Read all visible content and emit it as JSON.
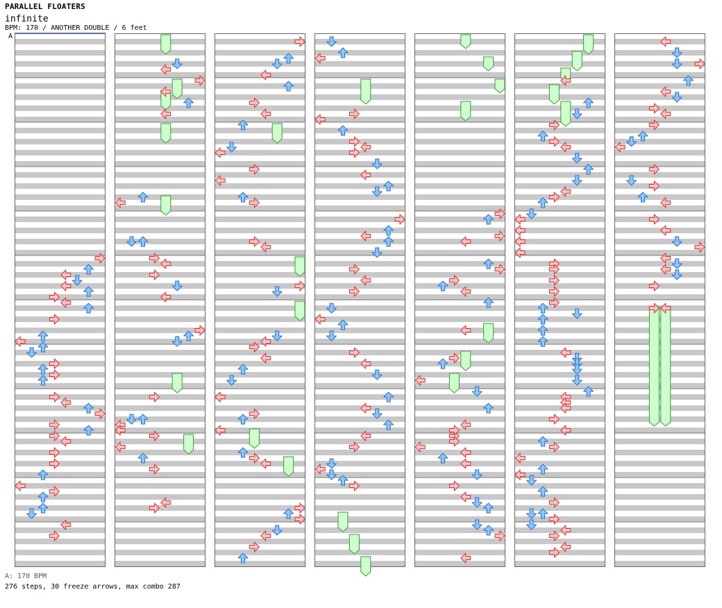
{
  "header": {
    "title": "PARALLEL FLOATERS",
    "subtitle": "infinite",
    "chart_info": "BPM: 170 / ANOTHER DOUBLE / 6 feet",
    "bpm_marker": "A"
  },
  "footer": {
    "bpm_legend": "A: 170 BPM",
    "stats": "276 steps, 30 freeze arrows, max combo 287"
  },
  "colors": {
    "stripe": "#c8c8c8",
    "column_border": "#666666",
    "blue_fill": "#88c8ff",
    "blue_stroke": "#2a6fd6",
    "red_fill": "#ffc2c2",
    "red_stroke": "#e03030",
    "freeze_fill": "#ccffcc",
    "freeze_stroke": "#3a9a3a",
    "bpm_line": "#3355cc"
  },
  "chart_data": {
    "type": "step-chart",
    "mode": "double",
    "bpm": 170,
    "columns": 7,
    "measures_per_column": 12,
    "lanes": [
      "L1",
      "D1",
      "U1",
      "R1",
      "L2",
      "D2",
      "U2",
      "R2"
    ],
    "lane_side_colors": [
      "red",
      "blue",
      "blue",
      "red",
      "red",
      "blue",
      "blue",
      "red"
    ],
    "freezes": [
      {
        "col": 1,
        "lane": 4,
        "start": 0,
        "end": 2
      },
      {
        "col": 1,
        "lane": 5,
        "start": 8,
        "end": 10
      },
      {
        "col": 1,
        "lane": 4,
        "start": 10,
        "end": 12
      },
      {
        "col": 1,
        "lane": 4,
        "start": 16,
        "end": 18
      },
      {
        "col": 1,
        "lane": 4,
        "start": 29,
        "end": 31
      },
      {
        "col": 1,
        "lane": 5,
        "start": 61,
        "end": 63
      },
      {
        "col": 1,
        "lane": 6,
        "start": 72,
        "end": 74
      },
      {
        "col": 2,
        "lane": 5,
        "start": 16,
        "end": 18
      },
      {
        "col": 2,
        "lane": 7,
        "start": 40,
        "end": 42
      },
      {
        "col": 2,
        "lane": 7,
        "start": 48,
        "end": 50
      },
      {
        "col": 2,
        "lane": 3,
        "start": 71,
        "end": 73
      },
      {
        "col": 2,
        "lane": 6,
        "start": 76,
        "end": 78
      },
      {
        "col": 3,
        "lane": 4,
        "start": 8,
        "end": 11
      },
      {
        "col": 3,
        "lane": 2,
        "start": 86,
        "end": 88
      },
      {
        "col": 3,
        "lane": 3,
        "start": 90,
        "end": 92
      },
      {
        "col": 3,
        "lane": 4,
        "start": 94,
        "end": 96
      },
      {
        "col": 4,
        "lane": 4,
        "start": 0,
        "end": 1
      },
      {
        "col": 4,
        "lane": 6,
        "start": 4,
        "end": 5
      },
      {
        "col": 4,
        "lane": 7,
        "start": 8,
        "end": 9
      },
      {
        "col": 4,
        "lane": 4,
        "start": 12,
        "end": 14
      },
      {
        "col": 4,
        "lane": 6,
        "start": 52,
        "end": 54
      },
      {
        "col": 4,
        "lane": 4,
        "start": 57,
        "end": 59
      },
      {
        "col": 4,
        "lane": 3,
        "start": 61,
        "end": 63
      },
      {
        "col": 5,
        "lane": 6,
        "start": 0,
        "end": 2
      },
      {
        "col": 5,
        "lane": 5,
        "start": 3,
        "end": 5
      },
      {
        "col": 5,
        "lane": 4,
        "start": 6,
        "end": 7
      },
      {
        "col": 5,
        "lane": 3,
        "start": 9,
        "end": 11
      },
      {
        "col": 5,
        "lane": 4,
        "start": 12,
        "end": 15
      },
      {
        "col": 6,
        "lane": 3,
        "start": 49,
        "end": 69
      },
      {
        "col": 6,
        "lane": 4,
        "start": 49,
        "end": 69
      }
    ],
    "arrows": [
      [
        0,
        7,
        40
      ],
      [
        0,
        6,
        42
      ],
      [
        0,
        4,
        43
      ],
      [
        0,
        5,
        44
      ],
      [
        0,
        4,
        45
      ],
      [
        0,
        6,
        46
      ],
      [
        0,
        3,
        47
      ],
      [
        0,
        4,
        48
      ],
      [
        0,
        6,
        49
      ],
      [
        0,
        3,
        51
      ],
      [
        0,
        2,
        54
      ],
      [
        0,
        0,
        55
      ],
      [
        0,
        2,
        56
      ],
      [
        0,
        1,
        57
      ],
      [
        0,
        3,
        59
      ],
      [
        0,
        2,
        60
      ],
      [
        0,
        3,
        61
      ],
      [
        0,
        2,
        62
      ],
      [
        0,
        3,
        65
      ],
      [
        0,
        4,
        66
      ],
      [
        0,
        6,
        67
      ],
      [
        0,
        7,
        68
      ],
      [
        0,
        3,
        70
      ],
      [
        0,
        6,
        71
      ],
      [
        0,
        3,
        72
      ],
      [
        0,
        4,
        73
      ],
      [
        0,
        3,
        75
      ],
      [
        0,
        3,
        77
      ],
      [
        0,
        2,
        79
      ],
      [
        0,
        0,
        81
      ],
      [
        0,
        3,
        82
      ],
      [
        0,
        2,
        83
      ],
      [
        0,
        2,
        85
      ],
      [
        0,
        1,
        86
      ],
      [
        0,
        4,
        88
      ],
      [
        0,
        3,
        90
      ],
      [
        1,
        5,
        5
      ],
      [
        1,
        4,
        6
      ],
      [
        1,
        7,
        8
      ],
      [
        1,
        4,
        10
      ],
      [
        1,
        6,
        12
      ],
      [
        1,
        4,
        14
      ],
      [
        1,
        0,
        30
      ],
      [
        1,
        2,
        29
      ],
      [
        1,
        1,
        37
      ],
      [
        1,
        2,
        37
      ],
      [
        1,
        3,
        40
      ],
      [
        1,
        4,
        41
      ],
      [
        1,
        3,
        43
      ],
      [
        1,
        5,
        45
      ],
      [
        1,
        4,
        47
      ],
      [
        1,
        7,
        53
      ],
      [
        1,
        6,
        54
      ],
      [
        1,
        5,
        55
      ],
      [
        1,
        3,
        65
      ],
      [
        1,
        1,
        69
      ],
      [
        1,
        0,
        70
      ],
      [
        1,
        2,
        69
      ],
      [
        1,
        0,
        71
      ],
      [
        1,
        3,
        72
      ],
      [
        1,
        0,
        74
      ],
      [
        1,
        2,
        76
      ],
      [
        1,
        3,
        78
      ],
      [
        1,
        4,
        84
      ],
      [
        1,
        3,
        85
      ],
      [
        2,
        7,
        1
      ],
      [
        2,
        6,
        4
      ],
      [
        2,
        5,
        5
      ],
      [
        2,
        4,
        7
      ],
      [
        2,
        6,
        9
      ],
      [
        2,
        3,
        12
      ],
      [
        2,
        4,
        14
      ],
      [
        2,
        2,
        16
      ],
      [
        2,
        1,
        20
      ],
      [
        2,
        0,
        21
      ],
      [
        2,
        3,
        24
      ],
      [
        2,
        0,
        26
      ],
      [
        2,
        2,
        29
      ],
      [
        2,
        3,
        30
      ],
      [
        2,
        3,
        37
      ],
      [
        2,
        4,
        38
      ],
      [
        2,
        5,
        46
      ],
      [
        2,
        7,
        45
      ],
      [
        2,
        5,
        54
      ],
      [
        2,
        4,
        55
      ],
      [
        2,
        3,
        56
      ],
      [
        2,
        4,
        58
      ],
      [
        2,
        2,
        60
      ],
      [
        2,
        1,
        62
      ],
      [
        2,
        0,
        65
      ],
      [
        2,
        2,
        69
      ],
      [
        2,
        3,
        68
      ],
      [
        2,
        0,
        71
      ],
      [
        2,
        2,
        75
      ],
      [
        2,
        3,
        76
      ],
      [
        2,
        4,
        77
      ],
      [
        2,
        6,
        86
      ],
      [
        2,
        7,
        85
      ],
      [
        2,
        7,
        87
      ],
      [
        2,
        5,
        89
      ],
      [
        2,
        4,
        90
      ],
      [
        2,
        3,
        92
      ],
      [
        2,
        2,
        94
      ],
      [
        3,
        1,
        1
      ],
      [
        3,
        2,
        3
      ],
      [
        3,
        0,
        4
      ],
      [
        3,
        3,
        14
      ],
      [
        3,
        0,
        15
      ],
      [
        3,
        2,
        17
      ],
      [
        3,
        3,
        19
      ],
      [
        3,
        4,
        20
      ],
      [
        3,
        3,
        21
      ],
      [
        3,
        5,
        23
      ],
      [
        3,
        4,
        25
      ],
      [
        3,
        6,
        27
      ],
      [
        3,
        5,
        28
      ],
      [
        3,
        7,
        33
      ],
      [
        3,
        6,
        35
      ],
      [
        3,
        4,
        36
      ],
      [
        3,
        6,
        37
      ],
      [
        3,
        5,
        39
      ],
      [
        3,
        3,
        42
      ],
      [
        3,
        4,
        44
      ],
      [
        3,
        3,
        46
      ],
      [
        3,
        1,
        49
      ],
      [
        3,
        0,
        51
      ],
      [
        3,
        2,
        52
      ],
      [
        3,
        1,
        54
      ],
      [
        3,
        3,
        57
      ],
      [
        3,
        4,
        59
      ],
      [
        3,
        5,
        61
      ],
      [
        3,
        6,
        65
      ],
      [
        3,
        4,
        67
      ],
      [
        3,
        5,
        68
      ],
      [
        3,
        6,
        70
      ],
      [
        3,
        4,
        72
      ],
      [
        3,
        3,
        74
      ],
      [
        3,
        1,
        77
      ],
      [
        3,
        0,
        78
      ],
      [
        3,
        1,
        79
      ],
      [
        3,
        2,
        80
      ],
      [
        3,
        3,
        81
      ],
      [
        4,
        7,
        32
      ],
      [
        4,
        6,
        33
      ],
      [
        4,
        7,
        36
      ],
      [
        4,
        4,
        37
      ],
      [
        4,
        6,
        41
      ],
      [
        4,
        7,
        42
      ],
      [
        4,
        3,
        44
      ],
      [
        4,
        2,
        45
      ],
      [
        4,
        4,
        46
      ],
      [
        4,
        6,
        48
      ],
      [
        4,
        4,
        53
      ],
      [
        4,
        3,
        58
      ],
      [
        4,
        2,
        59
      ],
      [
        4,
        0,
        62
      ],
      [
        4,
        5,
        64
      ],
      [
        4,
        6,
        67
      ],
      [
        4,
        4,
        70
      ],
      [
        4,
        3,
        72
      ],
      [
        4,
        0,
        74
      ],
      [
        4,
        3,
        71
      ],
      [
        4,
        3,
        73
      ],
      [
        4,
        4,
        75
      ],
      [
        4,
        2,
        76
      ],
      [
        4,
        4,
        77
      ],
      [
        4,
        5,
        79
      ],
      [
        4,
        3,
        81
      ],
      [
        4,
        4,
        83
      ],
      [
        4,
        5,
        84
      ],
      [
        4,
        6,
        85
      ],
      [
        4,
        5,
        88
      ],
      [
        4,
        6,
        89
      ],
      [
        4,
        7,
        90
      ],
      [
        4,
        4,
        94
      ],
      [
        5,
        4,
        8
      ],
      [
        5,
        6,
        12
      ],
      [
        5,
        5,
        14
      ],
      [
        5,
        3,
        16
      ],
      [
        5,
        2,
        18
      ],
      [
        5,
        3,
        19
      ],
      [
        5,
        4,
        20
      ],
      [
        5,
        5,
        22
      ],
      [
        5,
        6,
        24
      ],
      [
        5,
        5,
        26
      ],
      [
        5,
        4,
        28
      ],
      [
        5,
        3,
        29
      ],
      [
        5,
        2,
        30
      ],
      [
        5,
        1,
        32
      ],
      [
        5,
        0,
        33
      ],
      [
        5,
        0,
        35
      ],
      [
        5,
        0,
        37
      ],
      [
        5,
        0,
        39
      ],
      [
        5,
        3,
        41
      ],
      [
        5,
        3,
        42
      ],
      [
        5,
        3,
        44
      ],
      [
        5,
        3,
        46
      ],
      [
        5,
        3,
        48
      ],
      [
        5,
        5,
        50
      ],
      [
        5,
        2,
        49
      ],
      [
        5,
        2,
        51
      ],
      [
        5,
        2,
        53
      ],
      [
        5,
        2,
        55
      ],
      [
        5,
        4,
        57
      ],
      [
        5,
        5,
        58
      ],
      [
        5,
        5,
        59
      ],
      [
        5,
        5,
        60
      ],
      [
        5,
        5,
        62
      ],
      [
        5,
        6,
        64
      ],
      [
        5,
        4,
        65
      ],
      [
        5,
        4,
        66
      ],
      [
        5,
        4,
        67
      ],
      [
        5,
        3,
        69
      ],
      [
        5,
        4,
        71
      ],
      [
        5,
        2,
        73
      ],
      [
        5,
        3,
        74
      ],
      [
        5,
        0,
        76
      ],
      [
        5,
        2,
        78
      ],
      [
        5,
        0,
        79
      ],
      [
        5,
        1,
        80
      ],
      [
        5,
        2,
        82
      ],
      [
        5,
        3,
        84
      ],
      [
        5,
        1,
        86
      ],
      [
        5,
        2,
        86
      ],
      [
        5,
        3,
        87
      ],
      [
        5,
        1,
        88
      ],
      [
        5,
        3,
        90
      ],
      [
        5,
        4,
        89
      ],
      [
        5,
        3,
        93
      ],
      [
        5,
        4,
        92
      ],
      [
        6,
        4,
        1
      ],
      [
        6,
        5,
        3
      ],
      [
        6,
        5,
        5
      ],
      [
        6,
        7,
        5
      ],
      [
        6,
        6,
        8
      ],
      [
        6,
        4,
        10
      ],
      [
        6,
        5,
        11
      ],
      [
        6,
        3,
        13
      ],
      [
        6,
        4,
        14
      ],
      [
        6,
        3,
        16
      ],
      [
        6,
        2,
        18
      ],
      [
        6,
        1,
        19
      ],
      [
        6,
        0,
        20
      ],
      [
        6,
        3,
        24
      ],
      [
        6,
        1,
        26
      ],
      [
        6,
        3,
        27
      ],
      [
        6,
        2,
        29
      ],
      [
        6,
        4,
        30
      ],
      [
        6,
        3,
        33
      ],
      [
        6,
        4,
        35
      ],
      [
        6,
        5,
        37
      ],
      [
        6,
        7,
        38
      ],
      [
        6,
        4,
        40
      ],
      [
        6,
        5,
        41
      ],
      [
        6,
        4,
        42
      ],
      [
        6,
        5,
        43
      ],
      [
        6,
        3,
        45
      ],
      [
        6,
        3,
        49
      ],
      [
        6,
        4,
        49
      ]
    ]
  }
}
